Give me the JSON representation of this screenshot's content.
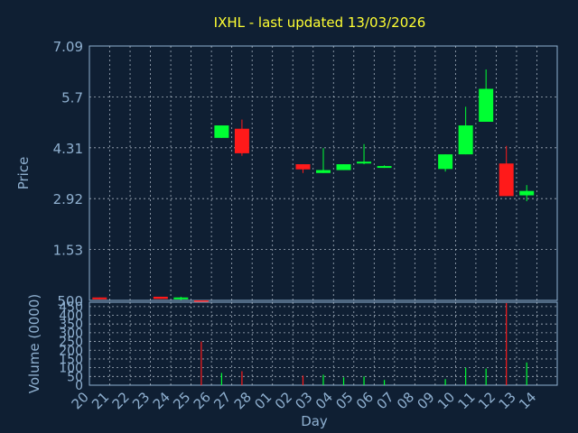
{
  "chart_data": [
    {
      "type": "candlestick",
      "title": "IXHL - last updated 13/03/2026",
      "ylabel": "Price",
      "ylim": [
        0.14,
        7.09
      ],
      "y_ticks": [
        "7.09",
        "5.7",
        "4.31",
        "2.92",
        "1.53",
        "500"
      ],
      "grid": true,
      "up_color": "#00ff33",
      "down_color": "#ff1a1a",
      "candles": [
        {
          "day": "20",
          "open": 0.22,
          "close": 0.17,
          "high": 0.22,
          "low": 0.17
        },
        {
          "day": "23",
          "open": 0.24,
          "close": 0.18,
          "high": 0.24,
          "low": 0.18
        },
        {
          "day": "24",
          "open": 0.17,
          "close": 0.22,
          "high": 0.24,
          "low": 0.15
        },
        {
          "day": "25",
          "open": 0.14,
          "close": 0.12,
          "high": 0.14,
          "low": 0.12
        },
        {
          "day": "26",
          "open": 4.58,
          "close": 4.92,
          "high": 4.92,
          "low": 4.58
        },
        {
          "day": "27",
          "open": 4.83,
          "close": 4.16,
          "high": 5.08,
          "low": 4.09
        },
        {
          "day": "02",
          "open": 3.86,
          "close": 3.72,
          "high": 3.86,
          "low": 3.62
        },
        {
          "day": "03",
          "open": 3.62,
          "close": 3.7,
          "high": 4.3,
          "low": 3.62
        },
        {
          "day": "04",
          "open": 3.7,
          "close": 3.86,
          "high": 3.86,
          "low": 3.7
        },
        {
          "day": "05",
          "open": 3.88,
          "close": 3.93,
          "high": 4.41,
          "low": 3.86
        },
        {
          "day": "06",
          "open": 3.78,
          "close": 3.81,
          "high": 3.83,
          "low": 3.76
        },
        {
          "day": "09",
          "open": 3.73,
          "close": 4.13,
          "high": 4.13,
          "low": 3.66
        },
        {
          "day": "10",
          "open": 4.13,
          "close": 4.92,
          "high": 5.43,
          "low": 4.13
        },
        {
          "day": "11",
          "open": 5.02,
          "close": 5.92,
          "high": 6.45,
          "low": 5.02
        },
        {
          "day": "12",
          "open": 3.88,
          "close": 2.99,
          "high": 4.36,
          "low": 2.99
        },
        {
          "day": "13",
          "open": 3.01,
          "close": 3.13,
          "high": 3.29,
          "low": 2.85
        }
      ]
    },
    {
      "type": "bar",
      "ylabel": "Volume (0000)",
      "xlabel": "Day",
      "ylim": [
        0,
        475
      ],
      "y_ticks": [
        "450",
        "400",
        "350",
        "300",
        "250",
        "200",
        "150",
        "100",
        "50",
        "0"
      ],
      "grid": true,
      "categories": [
        "20",
        "21",
        "22",
        "23",
        "24",
        "25",
        "26",
        "27",
        "28",
        "01",
        "02",
        "03",
        "04",
        "05",
        "06",
        "07",
        "08",
        "09",
        "10",
        "11",
        "12",
        "13",
        "14"
      ],
      "values": [
        0,
        0,
        0,
        0,
        0,
        250,
        70,
        80,
        0,
        0,
        55,
        60,
        45,
        50,
        30,
        0,
        0,
        35,
        100,
        95,
        470,
        130,
        0
      ],
      "bar_colors": [
        "#ff1a1a",
        "#ff1a1a",
        "#ff1a1a",
        "#ff1a1a",
        "#00ff33",
        "#ff1a1a",
        "#00ff33",
        "#ff1a1a",
        "#ff1a1a",
        "#ff1a1a",
        "#ff1a1a",
        "#00ff33",
        "#00ff33",
        "#00ff33",
        "#00ff33",
        "#00ff33",
        "#00ff33",
        "#00ff33",
        "#00ff33",
        "#00ff33",
        "#ff1a1a",
        "#00ff33",
        "#00ff33"
      ]
    }
  ]
}
